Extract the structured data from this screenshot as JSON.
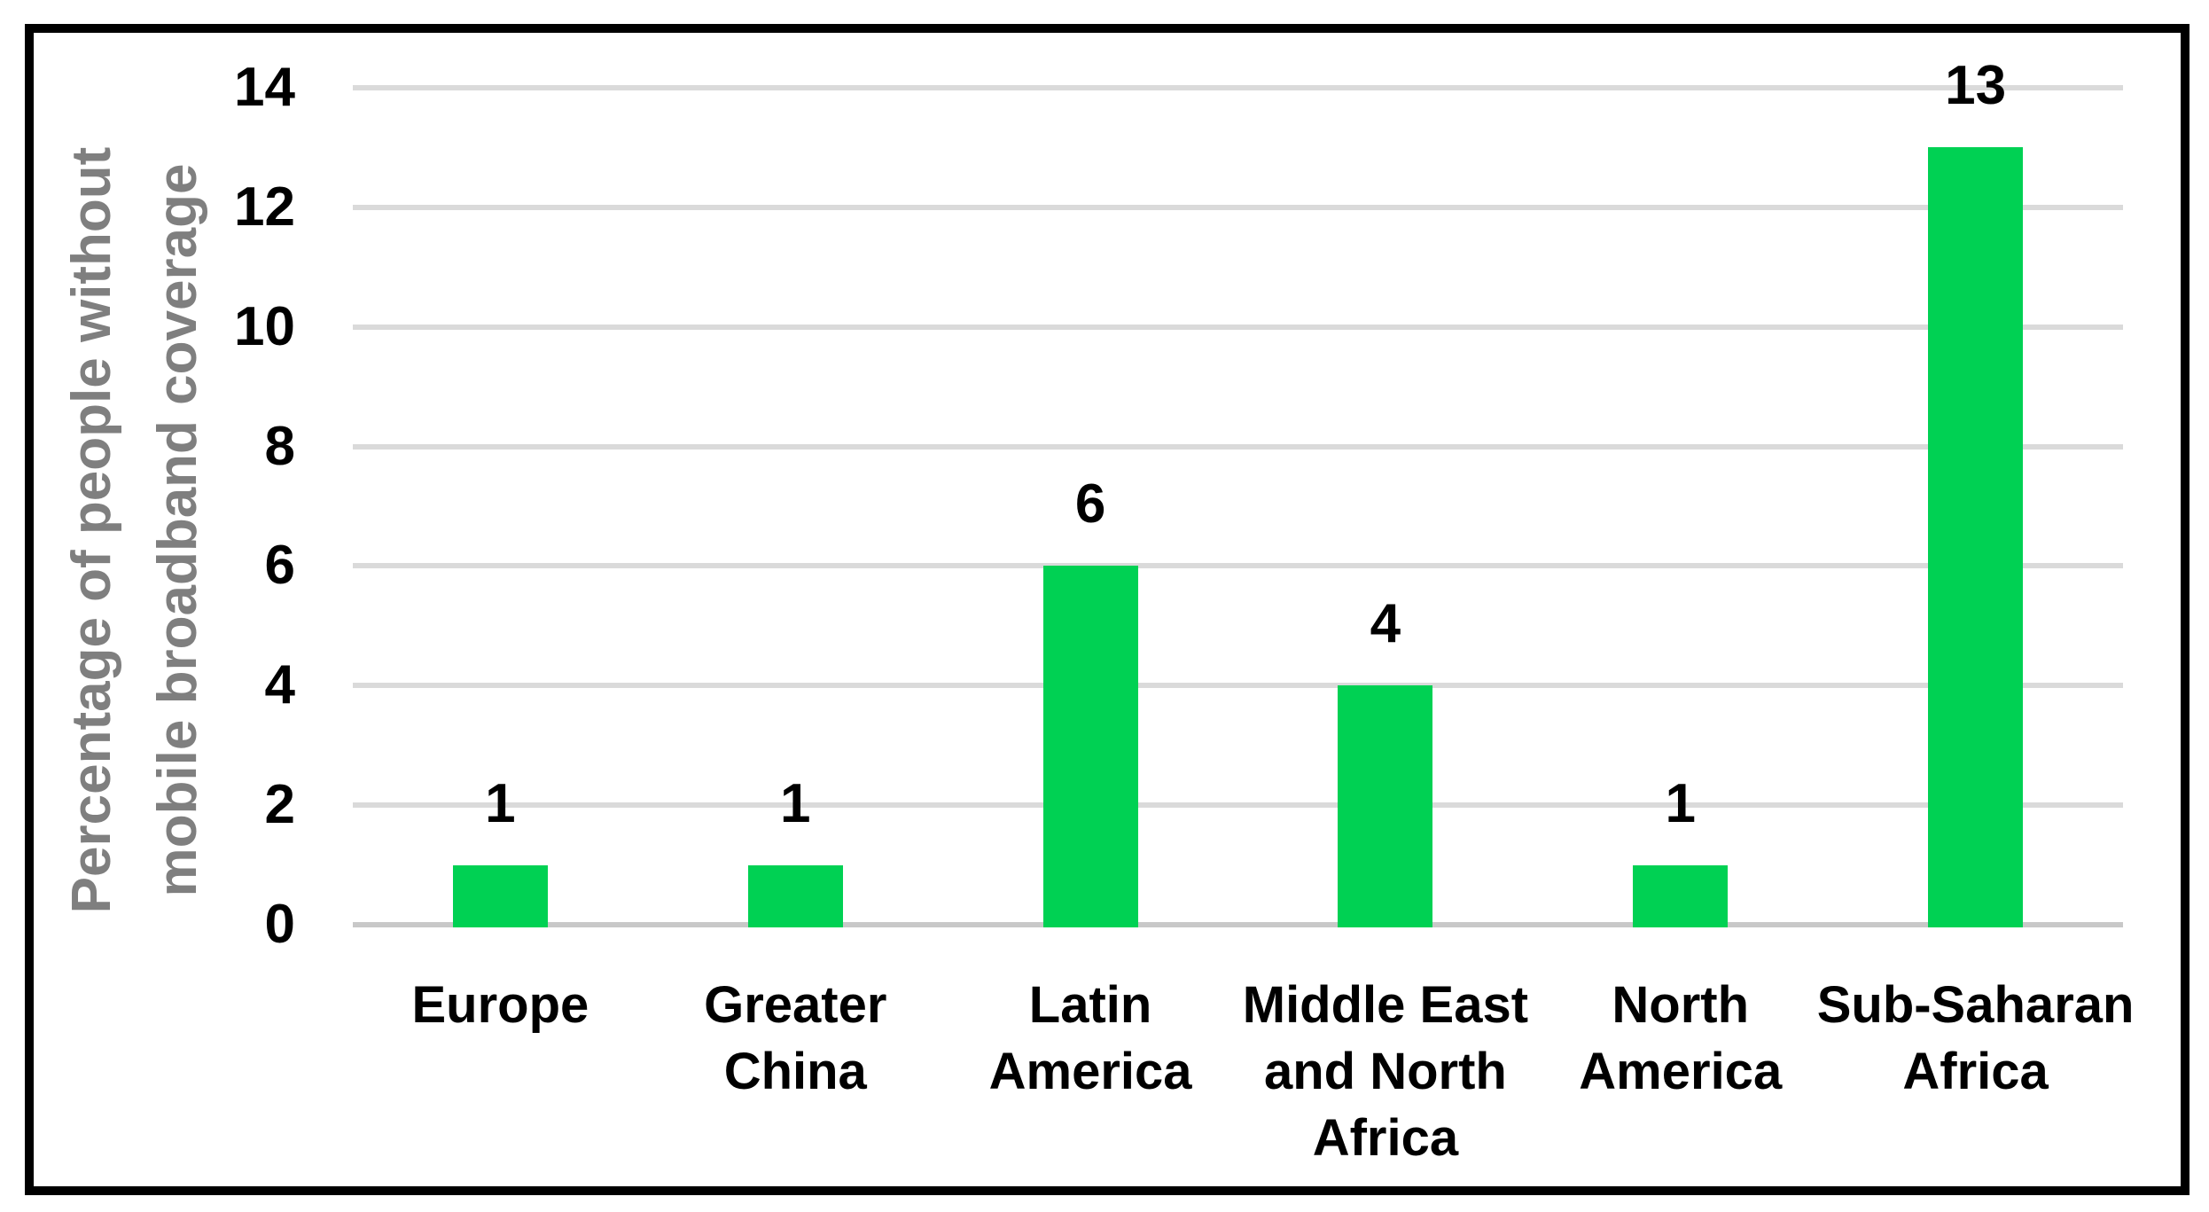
{
  "chart_data": {
    "type": "bar",
    "categories": [
      "Europe",
      "Greater China",
      "Latin America",
      "Middle East and North Africa",
      "North America",
      "Sub-Saharan Africa"
    ],
    "category_label_lines": [
      [
        "Europe"
      ],
      [
        "Greater",
        "China"
      ],
      [
        "Latin",
        "America"
      ],
      [
        "Middle East",
        "and North",
        "Africa"
      ],
      [
        "North",
        "America"
      ],
      [
        "Sub-Saharan",
        "Africa"
      ]
    ],
    "values": [
      1,
      1,
      6,
      4,
      1,
      13
    ],
    "data_labels": [
      "1",
      "1",
      "6",
      "4",
      "1",
      "13"
    ],
    "title": "",
    "xlabel": "",
    "ylabel": "Percentage of people without mobile broadband coverage",
    "ylabel_lines": [
      "Percentage of people without",
      "mobile broadband coverage"
    ],
    "yticks": [
      0,
      2,
      4,
      6,
      8,
      10,
      12,
      14
    ],
    "ylim": [
      0,
      14
    ],
    "grid": true,
    "legend": false,
    "colors": {
      "bar": "#00D153",
      "gridline": "#DADADA",
      "axis_line": "#C8C8C8",
      "ylabel_text": "#7F7F7F",
      "label_text": "#000000",
      "border": "#000000",
      "background": "#FFFFFF"
    }
  }
}
